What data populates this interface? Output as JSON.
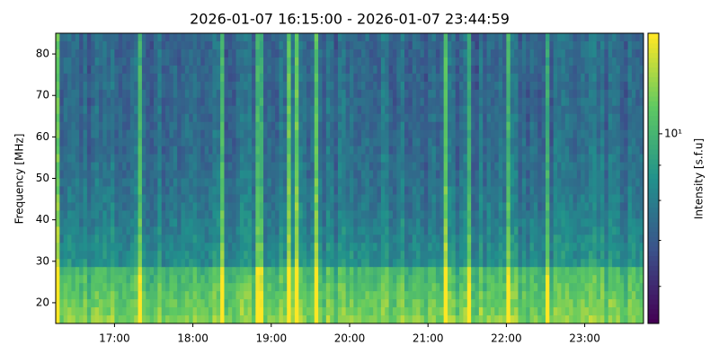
{
  "chart_data": {
    "type": "spectrogram",
    "title": "2026-01-07 16:15:00 - 2026-01-07 23:44:59",
    "ylabel": "Frequency [MHz]",
    "colorbar_label": "Intensity [s.f.u]",
    "xlim": [
      16.25,
      23.75
    ],
    "xticks": [
      {
        "value": 17,
        "label": "17:00"
      },
      {
        "value": 18,
        "label": "18:00"
      },
      {
        "value": 19,
        "label": "19:00"
      },
      {
        "value": 20,
        "label": "20:00"
      },
      {
        "value": 21,
        "label": "21:00"
      },
      {
        "value": 22,
        "label": "22:00"
      },
      {
        "value": 23,
        "label": "23:00"
      }
    ],
    "ylim": [
      15,
      85
    ],
    "yticks": [
      20,
      30,
      40,
      50,
      60,
      70,
      80
    ],
    "clim": [
      5.3,
      14
    ],
    "cscale": "log",
    "cticks": [
      {
        "value": 10,
        "label": "10¹"
      }
    ],
    "cminor": [
      6,
      7,
      8,
      9
    ],
    "colormap": "viridis"
  }
}
